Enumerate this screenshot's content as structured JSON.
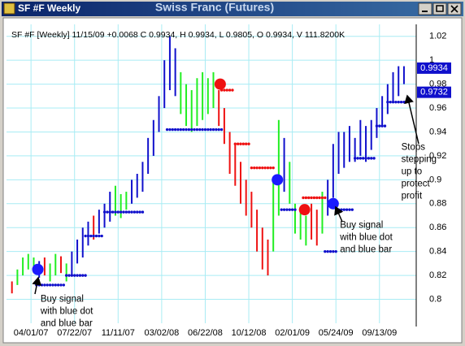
{
  "window": {
    "title": "SF #F Weekly",
    "chart_name": "Swiss Franc (Futures)"
  },
  "chart_data": {
    "type": "ohlc",
    "header": "SF #F [Weekly] 11/15/09 +0.0068 C 0.9934, H 0.9934, L 0.9805, O 0.9934, V 111.8200K",
    "xlim": [
      -9,
      141.5
    ],
    "ylim": [
      0.78,
      1.03
    ],
    "xticks": [
      {
        "value": 0,
        "label": "04/01/07"
      },
      {
        "value": 16,
        "label": "07/22/07"
      },
      {
        "value": 32,
        "label": "11/11/07"
      },
      {
        "value": 48,
        "label": "03/02/08"
      },
      {
        "value": 64,
        "label": "06/22/08"
      },
      {
        "value": 80,
        "label": "10/12/08"
      },
      {
        "value": 96,
        "label": "02/01/09"
      },
      {
        "value": 112,
        "label": "05/24/09"
      },
      {
        "value": 128,
        "label": "09/13/09"
      }
    ],
    "yticks": [
      {
        "value": 0.8,
        "label": "0.8"
      },
      {
        "value": 0.82,
        "label": "0.82"
      },
      {
        "value": 0.84,
        "label": "0.84"
      },
      {
        "value": 0.86,
        "label": "0.86"
      },
      {
        "value": 0.88,
        "label": "0.88"
      },
      {
        "value": 0.9,
        "label": "0.9"
      },
      {
        "value": 0.92,
        "label": "0.92"
      },
      {
        "value": 0.94,
        "label": "0.94"
      },
      {
        "value": 0.96,
        "label": "0.96"
      },
      {
        "value": 0.98,
        "label": "0.98"
      },
      {
        "value": 1,
        "label": "1"
      },
      {
        "value": 1.02,
        "label": "1.02"
      }
    ],
    "grid": true,
    "palette": {
      "g": "#22ee22",
      "b": "#1010cc",
      "r": "#ee1111"
    },
    "bars": {
      "x": [
        -7,
        -5,
        -3,
        -1,
        1,
        3,
        5,
        7,
        9,
        11,
        13,
        15,
        17,
        19,
        21,
        23,
        25,
        27,
        29,
        31,
        33,
        35,
        37,
        39,
        41,
        43,
        45,
        47,
        49,
        51,
        53,
        55,
        57,
        59,
        61,
        63,
        65,
        67,
        69,
        71,
        73,
        75,
        77,
        79,
        81,
        83,
        85,
        87,
        89,
        91,
        93,
        95,
        97,
        99,
        101,
        103,
        105,
        107,
        109,
        111,
        113,
        115,
        117,
        119,
        121,
        123,
        125,
        127,
        129,
        131,
        133,
        135,
        137
      ],
      "low": [
        0.805,
        0.812,
        0.82,
        0.825,
        0.822,
        0.818,
        0.82,
        0.815,
        0.82,
        0.822,
        0.815,
        0.82,
        0.83,
        0.835,
        0.845,
        0.85,
        0.855,
        0.86,
        0.865,
        0.87,
        0.868,
        0.875,
        0.88,
        0.885,
        0.89,
        0.905,
        0.92,
        0.94,
        0.96,
        0.975,
        0.97,
        0.955,
        0.945,
        0.94,
        0.945,
        0.95,
        0.955,
        0.96,
        0.945,
        0.93,
        0.905,
        0.895,
        0.88,
        0.87,
        0.86,
        0.84,
        0.825,
        0.82,
        0.84,
        0.87,
        0.89,
        0.88,
        0.855,
        0.85,
        0.845,
        0.85,
        0.845,
        0.855,
        0.87,
        0.885,
        0.905,
        0.91,
        0.915,
        0.915,
        0.92,
        0.915,
        0.925,
        0.935,
        0.945,
        0.955,
        0.965,
        0.97,
        0.98
      ],
      "high": [
        0.815,
        0.825,
        0.835,
        0.838,
        0.835,
        0.832,
        0.835,
        0.83,
        0.838,
        0.836,
        0.83,
        0.84,
        0.85,
        0.86,
        0.865,
        0.87,
        0.875,
        0.88,
        0.89,
        0.895,
        0.888,
        0.89,
        0.9,
        0.905,
        0.915,
        0.935,
        0.95,
        0.97,
        1.0,
        1.02,
        1.01,
        0.99,
        0.98,
        0.975,
        0.985,
        0.99,
        0.985,
        0.99,
        0.975,
        0.96,
        0.94,
        0.93,
        0.915,
        0.9,
        0.89,
        0.875,
        0.86,
        0.85,
        0.9,
        0.95,
        0.935,
        0.915,
        0.88,
        0.875,
        0.87,
        0.88,
        0.875,
        0.89,
        0.9,
        0.93,
        0.94,
        0.94,
        0.945,
        0.935,
        0.95,
        0.945,
        0.95,
        0.96,
        0.97,
        0.98,
        0.99,
        0.995,
        0.995
      ],
      "color": [
        "r",
        "g",
        "g",
        "g",
        "g",
        "b",
        "r",
        "g",
        "g",
        "r",
        "g",
        "b",
        "b",
        "b",
        "b",
        "r",
        "b",
        "b",
        "b",
        "g",
        "g",
        "g",
        "b",
        "b",
        "b",
        "b",
        "b",
        "b",
        "b",
        "b",
        "b",
        "g",
        "g",
        "g",
        "g",
        "g",
        "g",
        "g",
        "r",
        "r",
        "r",
        "r",
        "r",
        "r",
        "r",
        "r",
        "r",
        "r",
        "g",
        "g",
        "b",
        "g",
        "g",
        "g",
        "g",
        "r",
        "r",
        "g",
        "b",
        "b",
        "b",
        "b",
        "b",
        "b",
        "b",
        "b",
        "b",
        "b",
        "b",
        "b",
        "b",
        "b",
        "b"
      ]
    },
    "stops": [
      {
        "from": 2,
        "to": 12,
        "value": 0.812,
        "color": "b"
      },
      {
        "from": 13,
        "to": 20,
        "value": 0.82,
        "color": "b"
      },
      {
        "from": 20,
        "to": 26,
        "value": 0.853,
        "color": "b"
      },
      {
        "from": 27,
        "to": 41,
        "value": 0.873,
        "color": "b"
      },
      {
        "from": 50,
        "to": 70,
        "value": 0.942,
        "color": "b"
      },
      {
        "from": 70,
        "to": 74,
        "value": 0.975,
        "color": "r"
      },
      {
        "from": 75,
        "to": 80,
        "value": 0.93,
        "color": "r"
      },
      {
        "from": 81,
        "to": 89,
        "value": 0.91,
        "color": "r"
      },
      {
        "from": 92,
        "to": 97,
        "value": 0.875,
        "color": "b"
      },
      {
        "from": 100,
        "to": 108,
        "value": 0.885,
        "color": "r"
      },
      {
        "from": 108,
        "to": 112,
        "value": 0.84,
        "color": "b"
      },
      {
        "from": 113,
        "to": 118,
        "value": 0.875,
        "color": "b"
      },
      {
        "from": 119,
        "to": 126,
        "value": 0.918,
        "color": "b"
      },
      {
        "from": 127,
        "to": 130,
        "value": 0.945,
        "color": "b"
      },
      {
        "from": 131,
        "to": 137,
        "value": 0.965,
        "color": "b"
      }
    ],
    "signals": [
      {
        "x": 2.5,
        "value": 0.825,
        "color": "b"
      },
      {
        "x": 69.5,
        "value": 0.98,
        "color": "r"
      },
      {
        "x": 90.5,
        "value": 0.9,
        "color": "b"
      },
      {
        "x": 100.5,
        "value": 0.875,
        "color": "r"
      },
      {
        "x": 111,
        "value": 0.88,
        "color": "b"
      }
    ],
    "price_labels": [
      {
        "value": 0.9934,
        "label": "0.9934"
      },
      {
        "value": 0.9732,
        "label": "0.9732"
      }
    ],
    "annotations": [
      {
        "lines": [
          "Buy signal",
          "with blue dot",
          "and blue bar"
        ],
        "x": 3.5,
        "value": 0.8
      },
      {
        "lines": [
          "Buy signal",
          "with blue dot",
          "and blue bar"
        ],
        "x": 113.5,
        "value": 0.862
      },
      {
        "lines": [
          "Stops",
          "stepping",
          "up to",
          "protect",
          "profit"
        ],
        "x": 136,
        "value": 0.927
      }
    ]
  }
}
